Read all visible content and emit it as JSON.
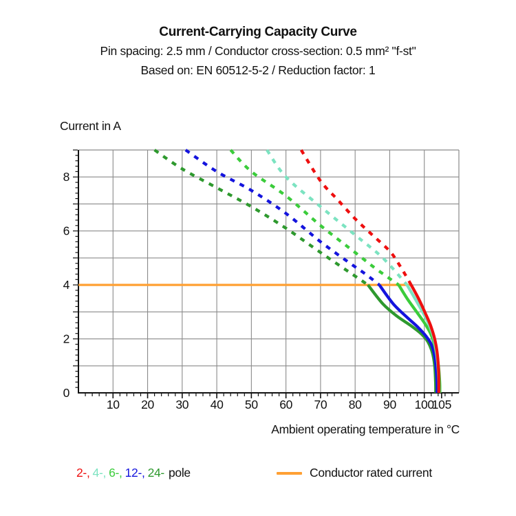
{
  "header": {
    "title": "Current-Carrying Capacity Curve",
    "subtitle1": "Pin spacing: 2.5 mm / Conductor cross-section: 0.5 mm² \"f-st\"",
    "subtitle2": "Based on: EN 60512-5-2 / Reduction factor: 1"
  },
  "chart_data": {
    "type": "line",
    "title": "Current-Carrying Capacity Curve",
    "xlabel": "Ambient operating temperature in °C",
    "ylabel": "Current in A",
    "xlim": [
      0,
      110
    ],
    "ylim": [
      0,
      9
    ],
    "xticks": [
      10,
      20,
      30,
      40,
      50,
      60,
      70,
      80,
      90,
      100,
      105
    ],
    "yticks": [
      0,
      2,
      4,
      6,
      8
    ],
    "x_gridlines": [
      10,
      20,
      30,
      40,
      50,
      60,
      70,
      80,
      90,
      100
    ],
    "y_gridlines": [
      1,
      2,
      3,
      4,
      5,
      6,
      7,
      8
    ],
    "grid": true,
    "grid_color": "#8a8a8a",
    "axis_color": "#111111",
    "legend_position": "bottom",
    "line_style_note": "curves dashed above rated current (4 A), solid below",
    "rated_current": {
      "label": "Conductor rated current",
      "value_a": 4,
      "t_start": 0,
      "t_end": 96.2,
      "color": "#FFA033"
    },
    "series": [
      {
        "name": "24-pole",
        "poles": 24,
        "color": "#2E992E",
        "dashed_points": [
          [
            22,
            9
          ],
          [
            30,
            8.3
          ],
          [
            40,
            7.6
          ],
          [
            50,
            6.9
          ],
          [
            60,
            6.1
          ],
          [
            70,
            5.2
          ],
          [
            78,
            4.5
          ],
          [
            83.7,
            4
          ]
        ],
        "solid_points": [
          [
            83.7,
            4
          ],
          [
            88,
            3.3
          ],
          [
            92,
            2.85
          ],
          [
            96,
            2.5
          ],
          [
            99,
            2.2
          ],
          [
            101,
            1.9
          ],
          [
            102.3,
            1.5
          ],
          [
            103,
            1
          ],
          [
            103.25,
            0.4
          ],
          [
            103.3,
            0
          ]
        ]
      },
      {
        "name": "12-pole",
        "poles": 12,
        "color": "#1414DD",
        "dashed_points": [
          [
            31,
            9
          ],
          [
            40,
            8.2
          ],
          [
            50,
            7.5
          ],
          [
            60,
            6.65
          ],
          [
            70,
            5.6
          ],
          [
            78,
            4.85
          ],
          [
            83,
            4.4
          ],
          [
            87,
            4
          ]
        ],
        "solid_points": [
          [
            87,
            4
          ],
          [
            91,
            3.3
          ],
          [
            95,
            2.8
          ],
          [
            98,
            2.45
          ],
          [
            100.5,
            2.1
          ],
          [
            102,
            1.8
          ],
          [
            103,
            1.35
          ],
          [
            103.6,
            0.6
          ],
          [
            103.7,
            0
          ]
        ]
      },
      {
        "name": "6-pole",
        "poles": 6,
        "color": "#3BCC3B",
        "dashed_points": [
          [
            44,
            9
          ],
          [
            50,
            8.2
          ],
          [
            60,
            7.3
          ],
          [
            70,
            6.2
          ],
          [
            80,
            5.2
          ],
          [
            86,
            4.6
          ],
          [
            92.6,
            4
          ]
        ],
        "solid_points": [
          [
            92.6,
            4
          ],
          [
            95,
            3.5
          ],
          [
            97.5,
            3.05
          ],
          [
            100,
            2.6
          ],
          [
            101.8,
            2.2
          ],
          [
            103,
            1.75
          ],
          [
            104,
            1.1
          ],
          [
            104.45,
            0.4
          ],
          [
            104.5,
            0
          ]
        ]
      },
      {
        "name": "4-pole",
        "poles": 4,
        "color": "#7CE3C1",
        "dashed_points": [
          [
            54.5,
            9
          ],
          [
            60,
            8
          ],
          [
            70,
            6.9
          ],
          [
            80,
            5.85
          ],
          [
            88,
            5
          ],
          [
            95,
            4
          ]
        ],
        "solid_points": [
          [
            95,
            4
          ],
          [
            97.5,
            3.45
          ],
          [
            99.5,
            3
          ],
          [
            101.3,
            2.55
          ],
          [
            102.7,
            2.05
          ],
          [
            103.5,
            1.5
          ],
          [
            104,
            0.9
          ],
          [
            104.2,
            0.3
          ],
          [
            104.25,
            0
          ]
        ]
      },
      {
        "name": "2-pole",
        "poles": 2,
        "color": "#EE0F0F",
        "dashed_points": [
          [
            64.4,
            9
          ],
          [
            70,
            7.85
          ],
          [
            75,
            7.15
          ],
          [
            80,
            6.45
          ],
          [
            85,
            5.85
          ],
          [
            90,
            5.25
          ],
          [
            93,
            4.7
          ],
          [
            96.2,
            4
          ]
        ],
        "solid_points": [
          [
            96.2,
            4
          ],
          [
            98.5,
            3.45
          ],
          [
            100.3,
            2.95
          ],
          [
            101.8,
            2.5
          ],
          [
            103,
            2
          ],
          [
            103.8,
            1.4
          ],
          [
            104.15,
            0.7
          ],
          [
            104.2,
            0
          ]
        ]
      }
    ]
  },
  "legend": {
    "pole_items": [
      {
        "text": "2-,",
        "color": "#EE0F0F"
      },
      {
        "text": "4-,",
        "color": "#7CE3C1"
      },
      {
        "text": "6-,",
        "color": "#3BCC3B"
      },
      {
        "text": "12-,",
        "color": "#1414DD"
      },
      {
        "text": "24-",
        "color": "#2E992E"
      }
    ],
    "pole_suffix": "pole",
    "rated_label": "Conductor rated current"
  }
}
